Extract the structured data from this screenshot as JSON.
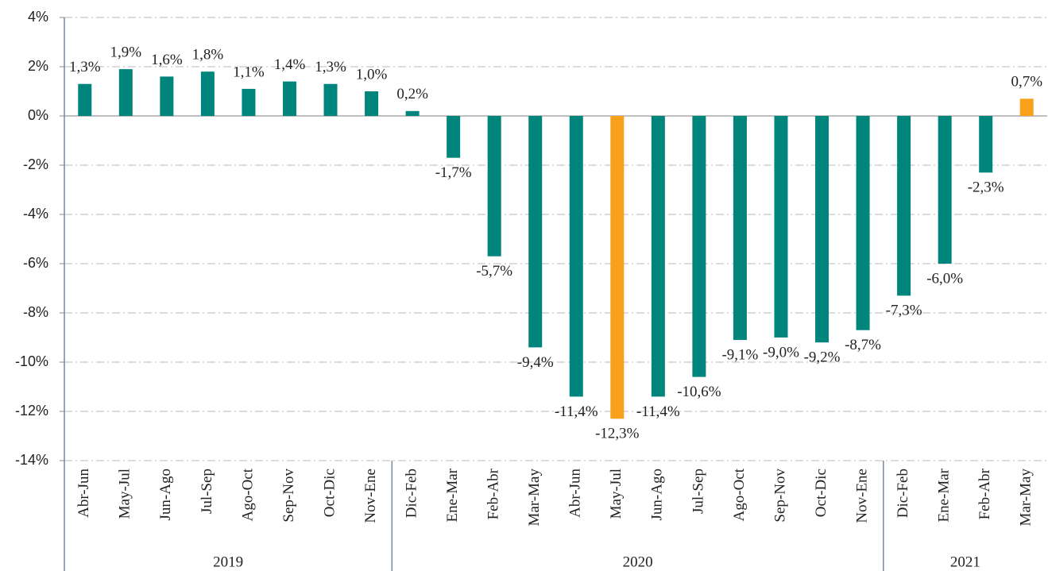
{
  "chart_data": {
    "type": "bar",
    "categories": [
      "Abr-Jun",
      "May-Jul",
      "Jun-Ago",
      "Jul-Sep",
      "Ago-Oct",
      "Sep-Nov",
      "Oct-Dic",
      "Nov-Ene",
      "Dic-Feb",
      "Ene-Mar",
      "Feb-Abr",
      "Mar-May",
      "Abr-Jun",
      "May-Jul",
      "Jun-Ago",
      "Jul-Sep",
      "Ago-Oct",
      "Sep-Nov",
      "Oct-Dic",
      "Nov-Ene",
      "Dic-Feb",
      "Ene-Mar",
      "Feb-Abr",
      "Mar-May"
    ],
    "x_groups": [
      {
        "label": "2019",
        "size": 8
      },
      {
        "label": "2020",
        "size": 12
      },
      {
        "label": "2021",
        "size": 4
      }
    ],
    "values": [
      1.3,
      1.9,
      1.6,
      1.8,
      1.1,
      1.4,
      1.3,
      1.0,
      0.2,
      -1.7,
      -5.7,
      -9.4,
      -11.4,
      -12.3,
      -11.4,
      -10.6,
      -9.1,
      -9.0,
      -9.2,
      -8.7,
      -7.3,
      -6.0,
      -2.3,
      0.7
    ],
    "value_labels": [
      "1,3%",
      "1,9%",
      "1,6%",
      "1,8%",
      "1,1%",
      "1,4%",
      "1,3%",
      "1,0%",
      "0,2%",
      "-1,7%",
      "-5,7%",
      "-9,4%",
      "-11,4%",
      "-12,3%",
      "-11,4%",
      "-10,6%",
      "-9,1%",
      "-9,0%",
      "-9,2%",
      "-8,7%",
      "-7,3%",
      "-6,0%",
      "-2,3%",
      "0,7%"
    ],
    "colors": [
      "#00857c",
      "#00857c",
      "#00857c",
      "#00857c",
      "#00857c",
      "#00857c",
      "#00857c",
      "#00857c",
      "#00857c",
      "#00857c",
      "#00857c",
      "#00857c",
      "#00857c",
      "#f9a11b",
      "#00857c",
      "#00857c",
      "#00857c",
      "#00857c",
      "#00857c",
      "#00857c",
      "#00857c",
      "#00857c",
      "#00857c",
      "#f9a11b"
    ],
    "ylim": [
      -14,
      4
    ],
    "yticks": [
      {
        "value": -14,
        "label": "-14%"
      },
      {
        "value": -12,
        "label": "-12%"
      },
      {
        "value": -10,
        "label": "-10%"
      },
      {
        "value": -8,
        "label": "-8%"
      },
      {
        "value": -6,
        "label": "-6%"
      },
      {
        "value": -4,
        "label": "-4%"
      },
      {
        "value": -2,
        "label": "-2%"
      },
      {
        "value": 0,
        "label": "0%"
      },
      {
        "value": 2,
        "label": "2%"
      },
      {
        "value": 4,
        "label": "4%"
      }
    ],
    "grid": true
  }
}
